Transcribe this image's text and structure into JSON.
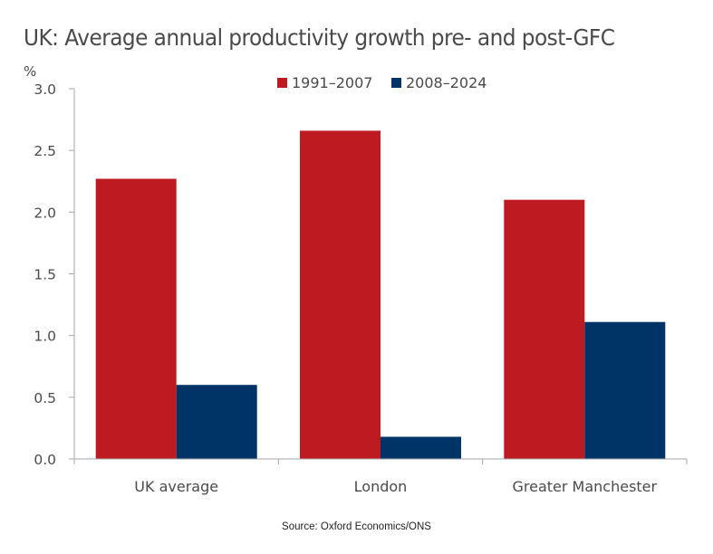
{
  "chart_data": {
    "type": "bar",
    "title": "UK: Average annual productivity growth pre- and post-GFC",
    "ylabel": "%",
    "xlabel": "",
    "ylim": [
      0,
      3.0
    ],
    "yticks": [
      "0.0",
      "0.5",
      "1.0",
      "1.5",
      "2.0",
      "2.5",
      "3.0"
    ],
    "ytick_values": [
      0,
      0.5,
      1.0,
      1.5,
      2.0,
      2.5,
      3.0
    ],
    "grid": false,
    "legend_position": "top-center",
    "categories": [
      "UK average",
      "London",
      "Greater Manchester"
    ],
    "series": [
      {
        "name": "1991–2007",
        "color": "#be1a22",
        "values": [
          2.27,
          2.66,
          2.1
        ]
      },
      {
        "name": "2008–2024",
        "color": "#003366",
        "values": [
          0.6,
          0.18,
          1.11
        ]
      }
    ],
    "source": "Source:  Oxford Economics/ONS"
  }
}
